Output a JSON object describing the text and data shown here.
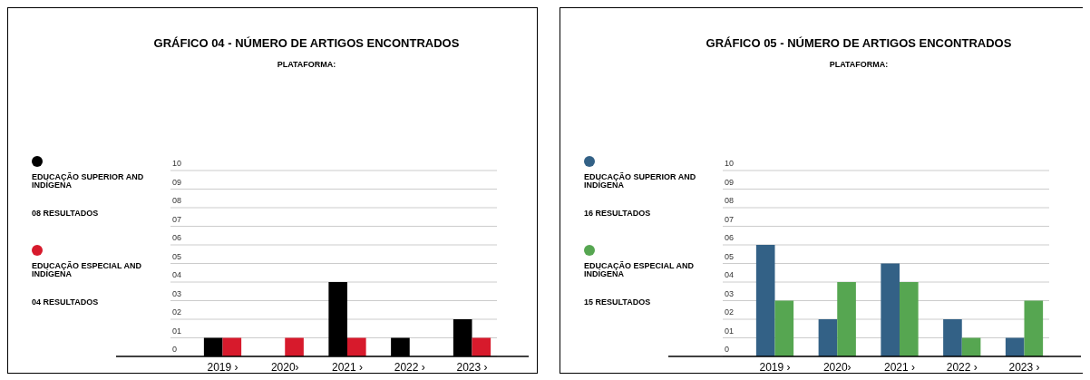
{
  "chart_data": [
    {
      "type": "bar",
      "title": "GRÁFICO 04 - NÚMERO DE ARTIGOS ENCONTRADOS",
      "subtitle": "PLATAFORMA:",
      "categories": [
        "2019 ›",
        "2020›",
        "2021 ›",
        "2022 ›",
        "2023 ›"
      ],
      "series": [
        {
          "name": "EDUCAÇÃO SUPERIOR AND INDÍGENA",
          "color": "#000000",
          "values": [
            1,
            0,
            4,
            1,
            2
          ]
        },
        {
          "name": "EDUCAÇÃO ESPECIAL AND INDÍGENA",
          "color": "#d71a2c",
          "values": [
            1,
            1,
            1,
            0,
            1
          ]
        }
      ],
      "annotations": [
        "08 RESULTADOS",
        "04 RESULTADOS"
      ],
      "ylim": [
        0,
        10
      ],
      "yticks": [
        {
          "value": 0,
          "label": "0"
        },
        {
          "value": 1,
          "label": "01"
        },
        {
          "value": 2,
          "label": "02"
        },
        {
          "value": 3,
          "label": "03"
        },
        {
          "value": 4,
          "label": "04"
        },
        {
          "value": 5,
          "label": "05"
        },
        {
          "value": 6,
          "label": "06"
        },
        {
          "value": 7,
          "label": "07"
        },
        {
          "value": 8,
          "label": "08"
        },
        {
          "value": 9,
          "label": "09"
        },
        10
      ],
      "grid": "y",
      "legend": "left"
    },
    {
      "type": "bar",
      "title": "GRÁFICO 05 - NÚMERO DE ARTIGOS ENCONTRADOS",
      "subtitle": "PLATAFORMA:",
      "categories": [
        "2019 ›",
        "2020›",
        "2021 ›",
        "2022 ›",
        "2023 ›"
      ],
      "series": [
        {
          "name": "EDUCAÇÃO SUPERIOR AND INDÍGENA",
          "color": "#336186",
          "values": [
            6,
            2,
            5,
            2,
            1
          ]
        },
        {
          "name": "EDUCAÇÃO ESPECIAL AND INDÍGENA",
          "color": "#56a651",
          "values": [
            3,
            4,
            4,
            1,
            3
          ]
        }
      ],
      "annotations": [
        "16 RESULTADOS",
        "15 RESULTADOS"
      ],
      "ylim": [
        0,
        10
      ],
      "yticks": [
        {
          "value": 0,
          "label": "0"
        },
        {
          "value": 1,
          "label": "01"
        },
        {
          "value": 2,
          "label": "02"
        },
        {
          "value": 3,
          "label": "03"
        },
        {
          "value": 4,
          "label": "04"
        },
        {
          "value": 5,
          "label": "05"
        },
        {
          "value": 6,
          "label": "06"
        },
        {
          "value": 7,
          "label": "07"
        },
        {
          "value": 8,
          "label": "08"
        },
        {
          "value": 9,
          "label": "09"
        },
        10
      ],
      "grid": "y",
      "legend": "left"
    }
  ]
}
